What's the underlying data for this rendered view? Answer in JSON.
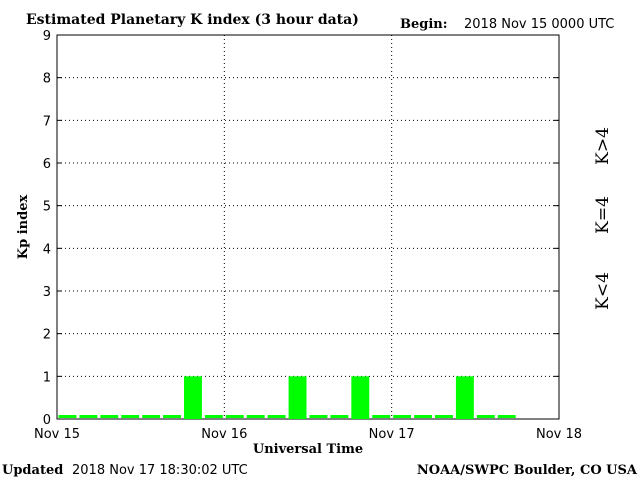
{
  "chart_data": {
    "type": "bar",
    "title": "Estimated Planetary K index (3 hour data)",
    "begin_label": "Begin:",
    "begin_value": "2018 Nov 15 0000 UTC",
    "xlabel": "Universal Time",
    "ylabel": "Kp index",
    "ylim": [
      0,
      9
    ],
    "y_ticks": [
      "0",
      "1",
      "2",
      "3",
      "4",
      "5",
      "6",
      "7",
      "8",
      "9"
    ],
    "x_ticks": [
      "Nov 15",
      "Nov 16",
      "Nov 17",
      "Nov 18"
    ],
    "bins_per_day": 8,
    "days": 3,
    "grid": "dotted",
    "values": [
      0,
      0,
      0,
      0,
      0,
      0,
      1,
      0,
      0,
      0,
      0,
      1,
      0,
      0,
      1,
      0,
      0,
      0,
      0,
      1,
      0,
      0
    ],
    "colors": {
      "below4": "#00ff00",
      "equal4": "#ffd700",
      "above4": "#ff2000"
    },
    "legend": [
      {
        "label": "K>4",
        "color": "#ff2000"
      },
      {
        "label": "K=4",
        "color": "#ffd700"
      },
      {
        "label": "K<4",
        "color": "#00ff00"
      }
    ]
  },
  "footer": {
    "updated_label": "Updated",
    "updated_value": "2018 Nov 17 18:30:02 UTC",
    "credit": "NOAA/SWPC Boulder, CO USA"
  }
}
